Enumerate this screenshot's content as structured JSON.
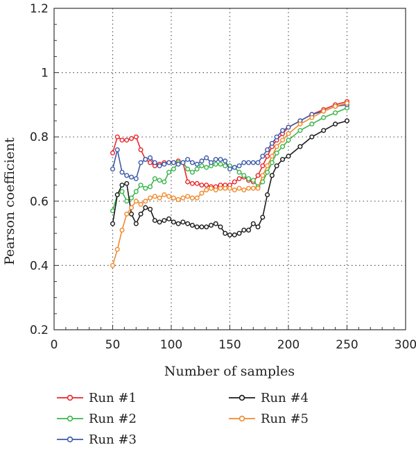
{
  "chart_data": {
    "type": "line",
    "title": "",
    "xlabel": "Number of samples",
    "ylabel": "Pearson coefficient",
    "xlim": [
      0,
      300
    ],
    "ylim": [
      0.2,
      1.2
    ],
    "x_ticks": [
      "0",
      "50",
      "100",
      "150",
      "200",
      "250",
      "300"
    ],
    "y_ticks": [
      "0.2",
      "0.4",
      "0.6",
      "0.8",
      "1",
      "1.2"
    ],
    "grid": "dotted",
    "legend_position": "bottom",
    "series": [
      {
        "name": "Run #1",
        "color": "#e8262b",
        "x": [
          50,
          54,
          58,
          62,
          66,
          70,
          74,
          78,
          82,
          86,
          90,
          94,
          98,
          102,
          106,
          110,
          114,
          118,
          122,
          126,
          130,
          134,
          138,
          142,
          146,
          150,
          154,
          158,
          162,
          166,
          170,
          174,
          178,
          182,
          186,
          190,
          195,
          200,
          210,
          220,
          230,
          240,
          250
        ],
        "y": [
          0.75,
          0.8,
          0.79,
          0.79,
          0.795,
          0.8,
          0.76,
          0.73,
          0.72,
          0.71,
          0.715,
          0.72,
          0.72,
          0.72,
          0.725,
          0.72,
          0.66,
          0.655,
          0.655,
          0.65,
          0.65,
          0.645,
          0.645,
          0.65,
          0.65,
          0.65,
          0.66,
          0.67,
          0.675,
          0.665,
          0.66,
          0.68,
          0.71,
          0.74,
          0.77,
          0.79,
          0.81,
          0.83,
          0.85,
          0.87,
          0.885,
          0.9,
          0.91
        ]
      },
      {
        "name": "Run #2",
        "color": "#3ab54a",
        "x": [
          50,
          54,
          58,
          62,
          66,
          70,
          74,
          78,
          82,
          86,
          90,
          94,
          98,
          102,
          106,
          110,
          114,
          118,
          122,
          126,
          130,
          134,
          138,
          142,
          146,
          150,
          154,
          158,
          162,
          166,
          170,
          174,
          178,
          182,
          186,
          190,
          195,
          200,
          210,
          220,
          230,
          240,
          250
        ],
        "y": [
          0.57,
          0.62,
          0.63,
          0.6,
          0.61,
          0.63,
          0.65,
          0.64,
          0.645,
          0.67,
          0.665,
          0.66,
          0.69,
          0.7,
          0.72,
          0.72,
          0.7,
          0.69,
          0.7,
          0.71,
          0.705,
          0.71,
          0.715,
          0.715,
          0.71,
          0.71,
          0.705,
          0.69,
          0.68,
          0.67,
          0.665,
          0.645,
          0.66,
          0.69,
          0.72,
          0.75,
          0.77,
          0.79,
          0.82,
          0.84,
          0.86,
          0.875,
          0.89
        ]
      },
      {
        "name": "Run #3",
        "color": "#3d5aa8",
        "x": [
          50,
          54,
          58,
          62,
          66,
          70,
          74,
          78,
          82,
          86,
          90,
          94,
          98,
          102,
          106,
          110,
          114,
          118,
          122,
          126,
          130,
          134,
          138,
          142,
          146,
          150,
          154,
          158,
          162,
          166,
          170,
          174,
          178,
          182,
          186,
          190,
          195,
          200,
          210,
          220,
          230,
          240,
          250
        ],
        "y": [
          0.7,
          0.76,
          0.69,
          0.68,
          0.675,
          0.67,
          0.72,
          0.73,
          0.735,
          0.72,
          0.71,
          0.715,
          0.72,
          0.72,
          0.715,
          0.72,
          0.73,
          0.72,
          0.715,
          0.725,
          0.735,
          0.72,
          0.73,
          0.73,
          0.725,
          0.7,
          0.705,
          0.71,
          0.72,
          0.72,
          0.72,
          0.72,
          0.74,
          0.76,
          0.78,
          0.8,
          0.82,
          0.83,
          0.85,
          0.87,
          0.88,
          0.895,
          0.9
        ]
      },
      {
        "name": "Run #4",
        "color": "#1a1a1a",
        "x": [
          50,
          54,
          58,
          62,
          66,
          70,
          74,
          78,
          82,
          86,
          90,
          94,
          98,
          102,
          106,
          110,
          114,
          118,
          122,
          126,
          130,
          134,
          138,
          142,
          146,
          150,
          154,
          158,
          162,
          166,
          170,
          174,
          178,
          182,
          186,
          190,
          195,
          200,
          210,
          220,
          230,
          240,
          250
        ],
        "y": [
          0.53,
          0.62,
          0.65,
          0.655,
          0.56,
          0.53,
          0.56,
          0.58,
          0.575,
          0.54,
          0.535,
          0.54,
          0.545,
          0.535,
          0.53,
          0.535,
          0.53,
          0.525,
          0.52,
          0.52,
          0.52,
          0.525,
          0.53,
          0.52,
          0.5,
          0.495,
          0.495,
          0.5,
          0.51,
          0.51,
          0.53,
          0.52,
          0.55,
          0.62,
          0.68,
          0.71,
          0.73,
          0.74,
          0.77,
          0.8,
          0.82,
          0.84,
          0.85
        ]
      },
      {
        "name": "Run #5",
        "color": "#f08a2c",
        "x": [
          50,
          54,
          58,
          62,
          66,
          70,
          74,
          78,
          82,
          86,
          90,
          94,
          98,
          102,
          106,
          110,
          114,
          118,
          122,
          126,
          130,
          134,
          138,
          142,
          146,
          150,
          154,
          158,
          162,
          166,
          170,
          174,
          178,
          182,
          186,
          190,
          195,
          200,
          210,
          220,
          230,
          240,
          250
        ],
        "y": [
          0.4,
          0.45,
          0.51,
          0.56,
          0.58,
          0.6,
          0.59,
          0.6,
          0.61,
          0.615,
          0.61,
          0.62,
          0.615,
          0.61,
          0.605,
          0.61,
          0.615,
          0.61,
          0.61,
          0.625,
          0.635,
          0.64,
          0.635,
          0.64,
          0.64,
          0.64,
          0.635,
          0.64,
          0.635,
          0.64,
          0.64,
          0.64,
          0.68,
          0.71,
          0.74,
          0.77,
          0.79,
          0.81,
          0.84,
          0.86,
          0.88,
          0.895,
          0.905
        ]
      }
    ]
  }
}
